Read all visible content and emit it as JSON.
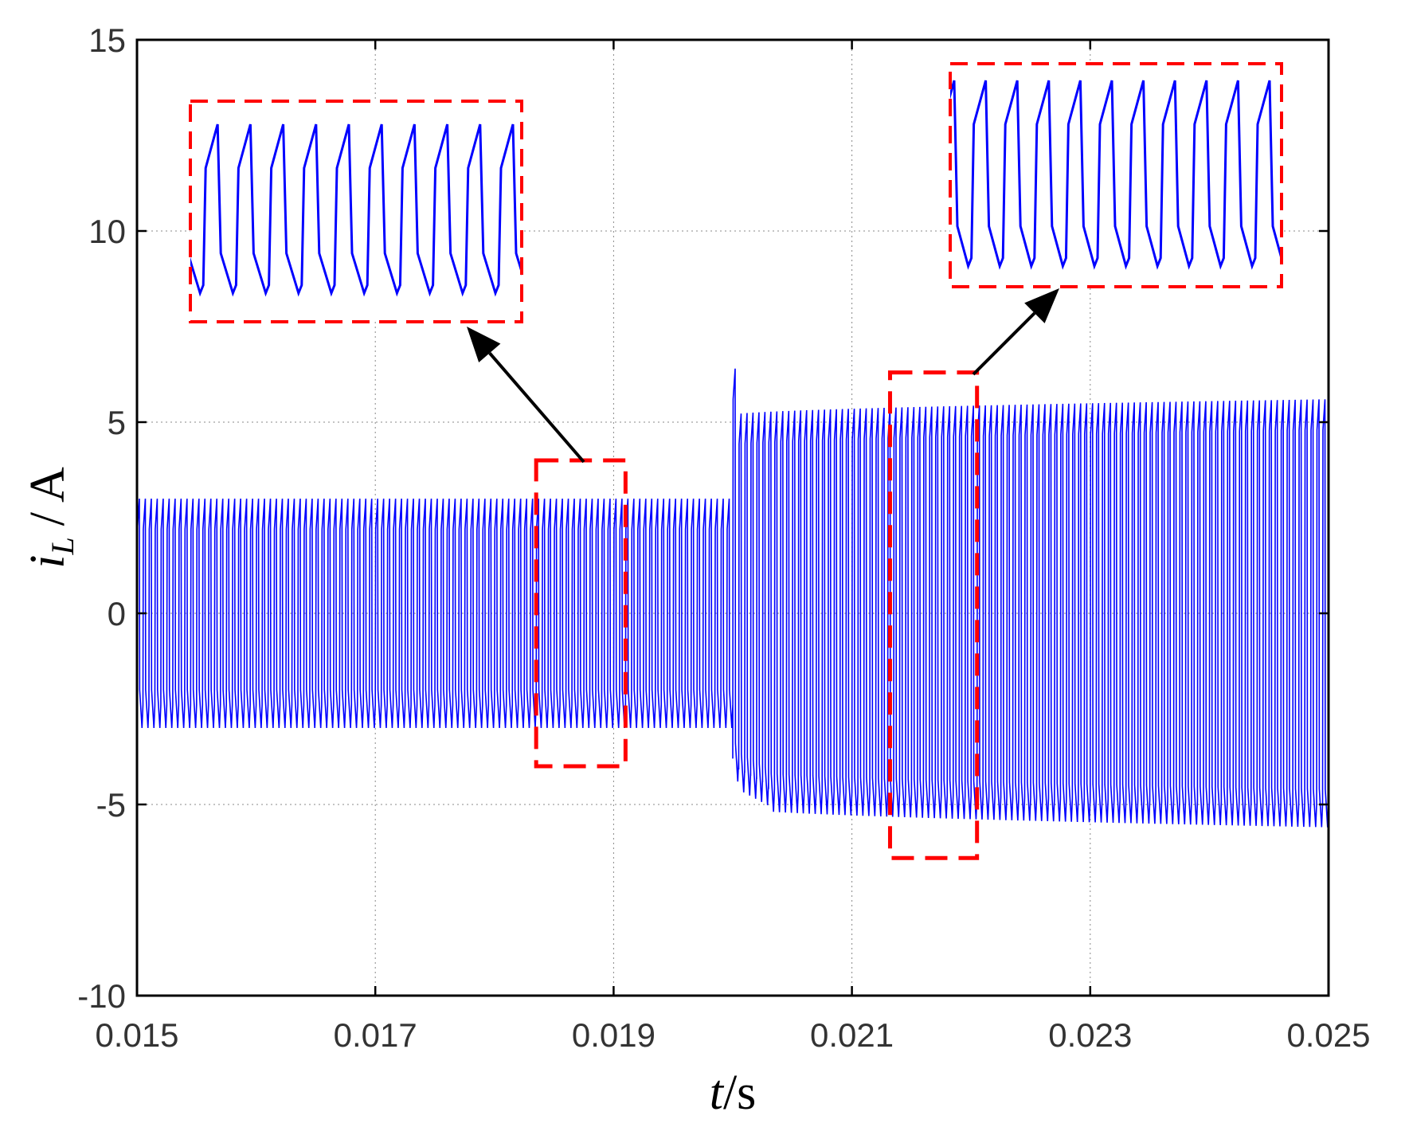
{
  "chart_data": {
    "type": "line",
    "title": "",
    "xlabel": "t/s",
    "ylabel": "i_L / A",
    "xlabel_parts": {
      "var": "t",
      "unit": "/s"
    },
    "ylabel_parts": {
      "var": "i",
      "sub": "L",
      "unit": "/ A"
    },
    "xlim": [
      0.015,
      0.025
    ],
    "ylim": [
      -10,
      15
    ],
    "x_ticks": [
      0.015,
      0.017,
      0.019,
      0.021,
      0.023,
      0.025
    ],
    "x_tick_labels": [
      "0.015",
      "0.017",
      "0.019",
      "0.021",
      "0.023",
      "0.025"
    ],
    "y_ticks": [
      -10,
      -5,
      0,
      5,
      10,
      15
    ],
    "y_tick_labels": [
      "-10",
      "-5",
      "0",
      "5",
      "10",
      "15"
    ],
    "grid": true,
    "legend": "none",
    "series": [
      {
        "color": "#0000ff",
        "description_values": {
          "before_step": {
            "x_range": [
              0.015,
              0.02
            ],
            "upper_envelope": 3.0,
            "lower_envelope": -3.0
          },
          "step_time": 0.02,
          "overshoot_peak": 6.4,
          "after_step": {
            "x_range": [
              0.02,
              0.025
            ],
            "upper_envelope_start": 5.2,
            "upper_envelope_end": 5.6,
            "lower_envelope_start": -5.1,
            "lower_envelope_end": -5.6
          }
        }
      }
    ],
    "annotations": [
      {
        "type": "zoom-box",
        "color": "#ff0000",
        "x_range": [
          0.01835,
          0.0191
        ],
        "y_range": [
          -4.0,
          4.0
        ]
      },
      {
        "type": "zoom-box",
        "color": "#ff0000",
        "x_range": [
          0.02132,
          0.02205
        ],
        "y_range": [
          -6.4,
          6.3
        ]
      }
    ]
  },
  "colors": {
    "signal": "#0000ff",
    "zoom_box": "#ff0000",
    "arrow": "#000000",
    "grid": "#888888"
  }
}
